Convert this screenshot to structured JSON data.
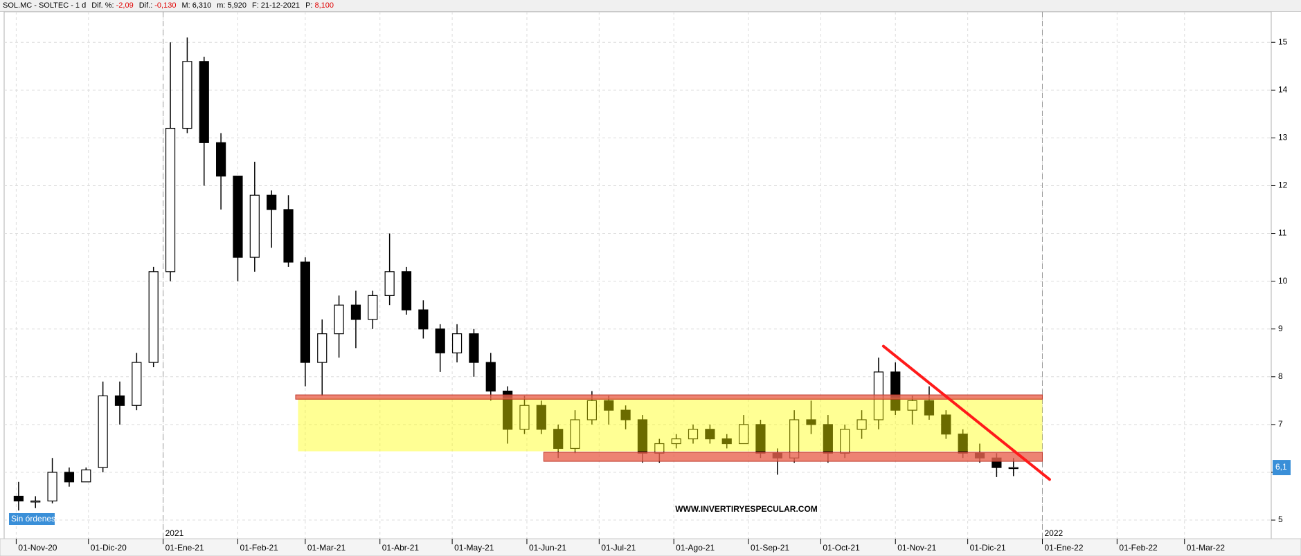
{
  "header": {
    "symbol": "SOL.MC - SOLTEC - 1 d",
    "fields": [
      {
        "label": "Dif. %:",
        "value": "-2,09",
        "color": "#e00000"
      },
      {
        "label": "Dif.:",
        "value": "-0,130",
        "color": "#e00000"
      },
      {
        "label": "M:",
        "value": "6,310",
        "color": "#000000"
      },
      {
        "label": "m:",
        "value": "5,920",
        "color": "#000000"
      },
      {
        "label": "F:",
        "value": "21-12-2021",
        "color": "#000000"
      },
      {
        "label": "P:",
        "value": "8,100",
        "color": "#e00000"
      }
    ]
  },
  "status": "Sin órdenes",
  "chart_data": {
    "type": "candlestick",
    "watermark": "WWW.INVERTIRYESPECULAR.COM",
    "x": [
      "2020-11-02",
      "2020-11-09",
      "2020-11-16",
      "2020-11-23",
      "2020-11-30",
      "2020-12-07",
      "2020-12-14",
      "2020-12-21",
      "2020-12-28",
      "2021-01-04",
      "2021-01-11",
      "2021-01-18",
      "2021-01-25",
      "2021-02-01",
      "2021-02-08",
      "2021-02-15",
      "2021-02-22",
      "2021-03-01",
      "2021-03-08",
      "2021-03-15",
      "2021-03-22",
      "2021-03-29",
      "2021-04-05",
      "2021-04-12",
      "2021-04-19",
      "2021-04-26",
      "2021-05-03",
      "2021-05-10",
      "2021-05-17",
      "2021-05-24",
      "2021-05-31",
      "2021-06-07",
      "2021-06-14",
      "2021-06-21",
      "2021-06-28",
      "2021-07-05",
      "2021-07-12",
      "2021-07-19",
      "2021-07-26",
      "2021-08-02",
      "2021-08-09",
      "2021-08-16",
      "2021-08-23",
      "2021-08-30",
      "2021-09-06",
      "2021-09-13",
      "2021-09-20",
      "2021-09-27",
      "2021-10-04",
      "2021-10-11",
      "2021-10-18",
      "2021-10-25",
      "2021-11-01",
      "2021-11-08",
      "2021-11-15",
      "2021-11-22",
      "2021-11-29",
      "2021-12-06",
      "2021-12-13",
      "2021-12-20"
    ],
    "open": [
      5.5,
      5.4,
      5.4,
      6.0,
      5.8,
      6.1,
      7.6,
      7.4,
      8.3,
      10.2,
      13.2,
      14.6,
      12.9,
      12.2,
      10.5,
      11.8,
      11.5,
      10.4,
      8.3,
      8.9,
      9.5,
      9.2,
      9.7,
      10.2,
      9.4,
      9.0,
      8.5,
      8.9,
      8.3,
      7.7,
      6.9,
      7.4,
      6.9,
      6.5,
      7.1,
      7.5,
      7.3,
      7.1,
      6.4,
      6.6,
      6.7,
      6.9,
      6.7,
      6.6,
      7.0,
      6.4,
      6.3,
      7.1,
      7.0,
      6.4,
      6.9,
      7.1,
      8.1,
      7.3,
      7.5,
      7.2,
      6.8,
      6.4,
      6.3,
      6.1
    ],
    "high": [
      5.8,
      5.5,
      6.3,
      6.1,
      6.1,
      7.9,
      7.9,
      8.5,
      10.3,
      15.0,
      15.1,
      14.7,
      13.1,
      12.2,
      12.5,
      11.9,
      11.8,
      10.5,
      9.2,
      9.7,
      9.8,
      9.8,
      11.0,
      10.3,
      9.6,
      9.1,
      9.1,
      9.0,
      8.5,
      7.8,
      7.6,
      7.5,
      7.0,
      7.3,
      7.7,
      7.6,
      7.4,
      7.2,
      6.7,
      6.8,
      7.0,
      7.0,
      6.8,
      7.2,
      7.1,
      6.5,
      7.3,
      7.5,
      7.2,
      7.0,
      7.3,
      8.4,
      8.3,
      7.6,
      7.8,
      7.3,
      6.9,
      6.6,
      6.4,
      6.3
    ],
    "low": [
      5.2,
      5.25,
      5.35,
      5.7,
      5.8,
      6.0,
      7.0,
      7.3,
      8.2,
      10.0,
      13.1,
      12.0,
      11.5,
      10.0,
      10.2,
      10.7,
      10.3,
      7.8,
      7.6,
      8.4,
      8.6,
      9.0,
      9.5,
      9.3,
      8.8,
      8.1,
      8.3,
      8.0,
      7.5,
      6.6,
      6.8,
      6.8,
      6.3,
      6.4,
      7.0,
      7.0,
      6.9,
      6.2,
      6.2,
      6.5,
      6.6,
      6.6,
      6.5,
      6.6,
      6.3,
      5.95,
      6.2,
      6.8,
      6.2,
      6.3,
      6.7,
      6.9,
      7.2,
      7.0,
      7.1,
      6.7,
      6.3,
      6.2,
      5.9,
      5.92
    ],
    "close": [
      5.4,
      5.4,
      6.0,
      5.8,
      6.05,
      7.6,
      7.4,
      8.3,
      10.2,
      13.2,
      14.6,
      12.9,
      12.2,
      10.5,
      11.8,
      11.5,
      10.4,
      8.3,
      8.9,
      9.5,
      9.2,
      9.7,
      10.2,
      9.4,
      9.0,
      8.5,
      8.9,
      8.3,
      7.7,
      6.9,
      7.4,
      6.9,
      6.5,
      7.1,
      7.5,
      7.3,
      7.1,
      6.4,
      6.6,
      6.7,
      6.9,
      6.7,
      6.6,
      7.0,
      6.4,
      6.3,
      7.1,
      7.0,
      6.4,
      6.9,
      7.1,
      8.1,
      7.3,
      7.5,
      7.2,
      6.8,
      6.4,
      6.3,
      6.1,
      6.1
    ],
    "up_color": "#ffffff",
    "down_color": "#000000",
    "outline_color": "#000000",
    "xlim": [
      "2020-10-27",
      "2022-04-06"
    ],
    "xticks": [
      {
        "value": "2020-11-01",
        "label": "01-Nov-20"
      },
      {
        "value": "2020-12-01",
        "label": "01-Dic-20"
      },
      {
        "value": "2021-01-01",
        "label": "01-Ene-21"
      },
      {
        "value": "2021-02-01",
        "label": "01-Feb-21"
      },
      {
        "value": "2021-03-01",
        "label": "01-Mar-21"
      },
      {
        "value": "2021-04-01",
        "label": "01-Abr-21"
      },
      {
        "value": "2021-05-01",
        "label": "01-May-21"
      },
      {
        "value": "2021-06-01",
        "label": "01-Jun-21"
      },
      {
        "value": "2021-07-01",
        "label": "01-Jul-21"
      },
      {
        "value": "2021-08-01",
        "label": "01-Ago-21"
      },
      {
        "value": "2021-09-01",
        "label": "01-Sep-21"
      },
      {
        "value": "2021-10-01",
        "label": "01-Oct-21"
      },
      {
        "value": "2021-11-01",
        "label": "01-Nov-21"
      },
      {
        "value": "2021-12-01",
        "label": "01-Dic-21"
      },
      {
        "value": "2022-01-01",
        "label": "01-Ene-22"
      },
      {
        "value": "2022-02-01",
        "label": "01-Feb-22"
      },
      {
        "value": "2022-03-01",
        "label": "01-Mar-22"
      }
    ],
    "year_markers": [
      {
        "value": "2021-01-01",
        "label": "2021"
      },
      {
        "value": "2022-01-01",
        "label": "2022"
      }
    ],
    "ylim": [
      4.61,
      15.64
    ],
    "yticks": [
      5,
      6,
      7,
      8,
      9,
      10,
      11,
      12,
      13,
      14,
      15
    ],
    "grid": true,
    "last_price": {
      "value": 6.1,
      "label": "6,1",
      "color": "#3a8fd8"
    },
    "zones": [
      {
        "x0": "2021-02-26",
        "x1": "2022-01-01",
        "y0": 6.44,
        "y1": 7.56,
        "color": "rgba(255,255,0,0.42)"
      },
      {
        "x0": "2021-02-25",
        "x1": "2022-01-01",
        "y0": 7.53,
        "y1": 7.62,
        "color": "rgba(232,100,80,0.8)"
      },
      {
        "x0": "2021-06-08",
        "x1": "2022-01-01",
        "y0": 6.23,
        "y1": 6.42,
        "color": "rgba(232,100,80,0.8)"
      }
    ],
    "trendline": {
      "x": [
        "2021-10-27",
        "2022-01-04"
      ],
      "y": [
        8.64,
        5.85
      ],
      "color": "#ff1a1a"
    }
  }
}
